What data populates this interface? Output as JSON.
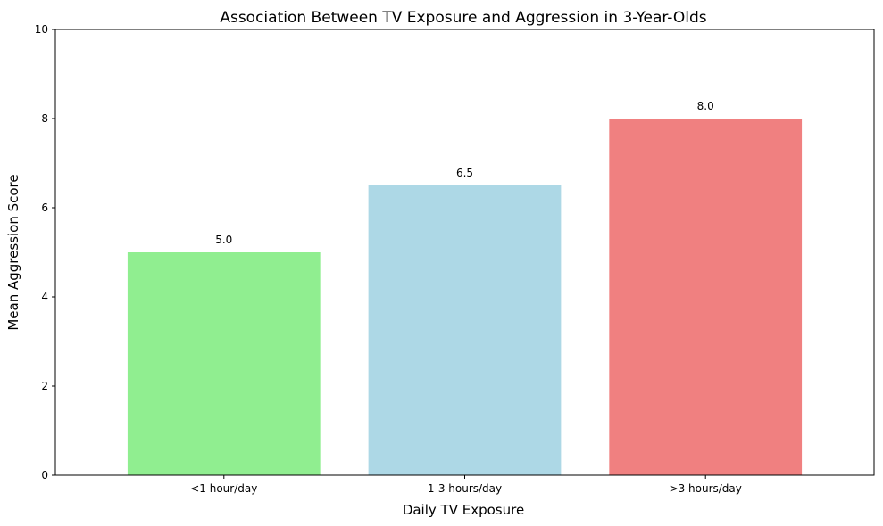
{
  "chart_data": {
    "type": "bar",
    "title": "Association Between TV Exposure and Aggression in 3-Year-Olds",
    "xlabel": "Daily TV Exposure",
    "ylabel": "Mean Aggression Score",
    "categories": [
      "<1 hour/day",
      "1-3 hours/day",
      ">3 hours/day"
    ],
    "values": [
      5.0,
      6.5,
      8.0
    ],
    "value_labels": [
      "5.0",
      "6.5",
      "8.0"
    ],
    "colors": [
      "#90ee90",
      "#add8e6",
      "#f08080"
    ],
    "ylim": [
      0,
      10
    ],
    "yticks": [
      0,
      2,
      4,
      6,
      8,
      10
    ],
    "grid": false,
    "legend": "none"
  }
}
